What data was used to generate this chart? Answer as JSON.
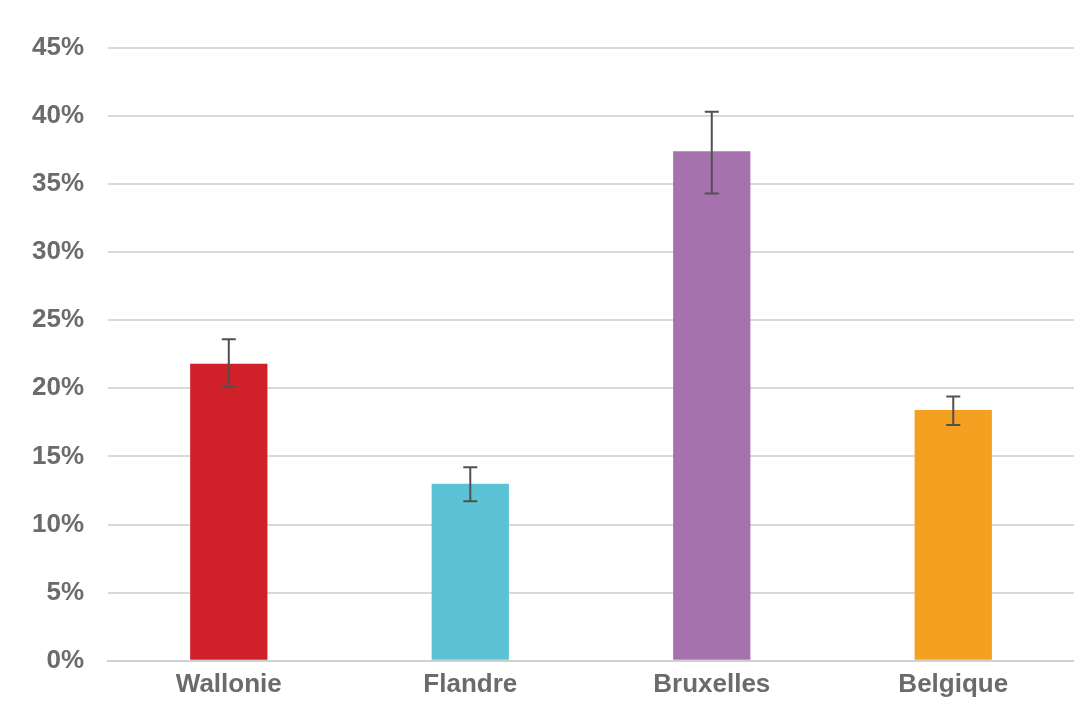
{
  "chart_data": {
    "type": "bar",
    "categories": [
      "Wallonie",
      "Flandre",
      "Bruxelles",
      "Belgique"
    ],
    "values": [
      21.8,
      13.0,
      37.4,
      18.4
    ],
    "colors": [
      "#d0202a",
      "#5bc3d5",
      "#a672ae",
      "#f4a020"
    ],
    "errors": [
      [
        20.1,
        23.6
      ],
      [
        11.7,
        14.2
      ],
      [
        34.3,
        40.3
      ],
      [
        17.3,
        19.4
      ]
    ],
    "ylim": [
      0,
      45
    ],
    "yticks": [
      {
        "value": 0,
        "label": "0%"
      },
      {
        "value": 5,
        "label": "5%"
      },
      {
        "value": 10,
        "label": "10%"
      },
      {
        "value": 15,
        "label": "15%"
      },
      {
        "value": 20,
        "label": "20%"
      },
      {
        "value": 25,
        "label": "25%"
      },
      {
        "value": 30,
        "label": "30%"
      },
      {
        "value": 35,
        "label": "35%"
      },
      {
        "value": 40,
        "label": "40%"
      },
      {
        "value": 45,
        "label": "45%"
      }
    ],
    "grid": "y",
    "legend": false
  }
}
